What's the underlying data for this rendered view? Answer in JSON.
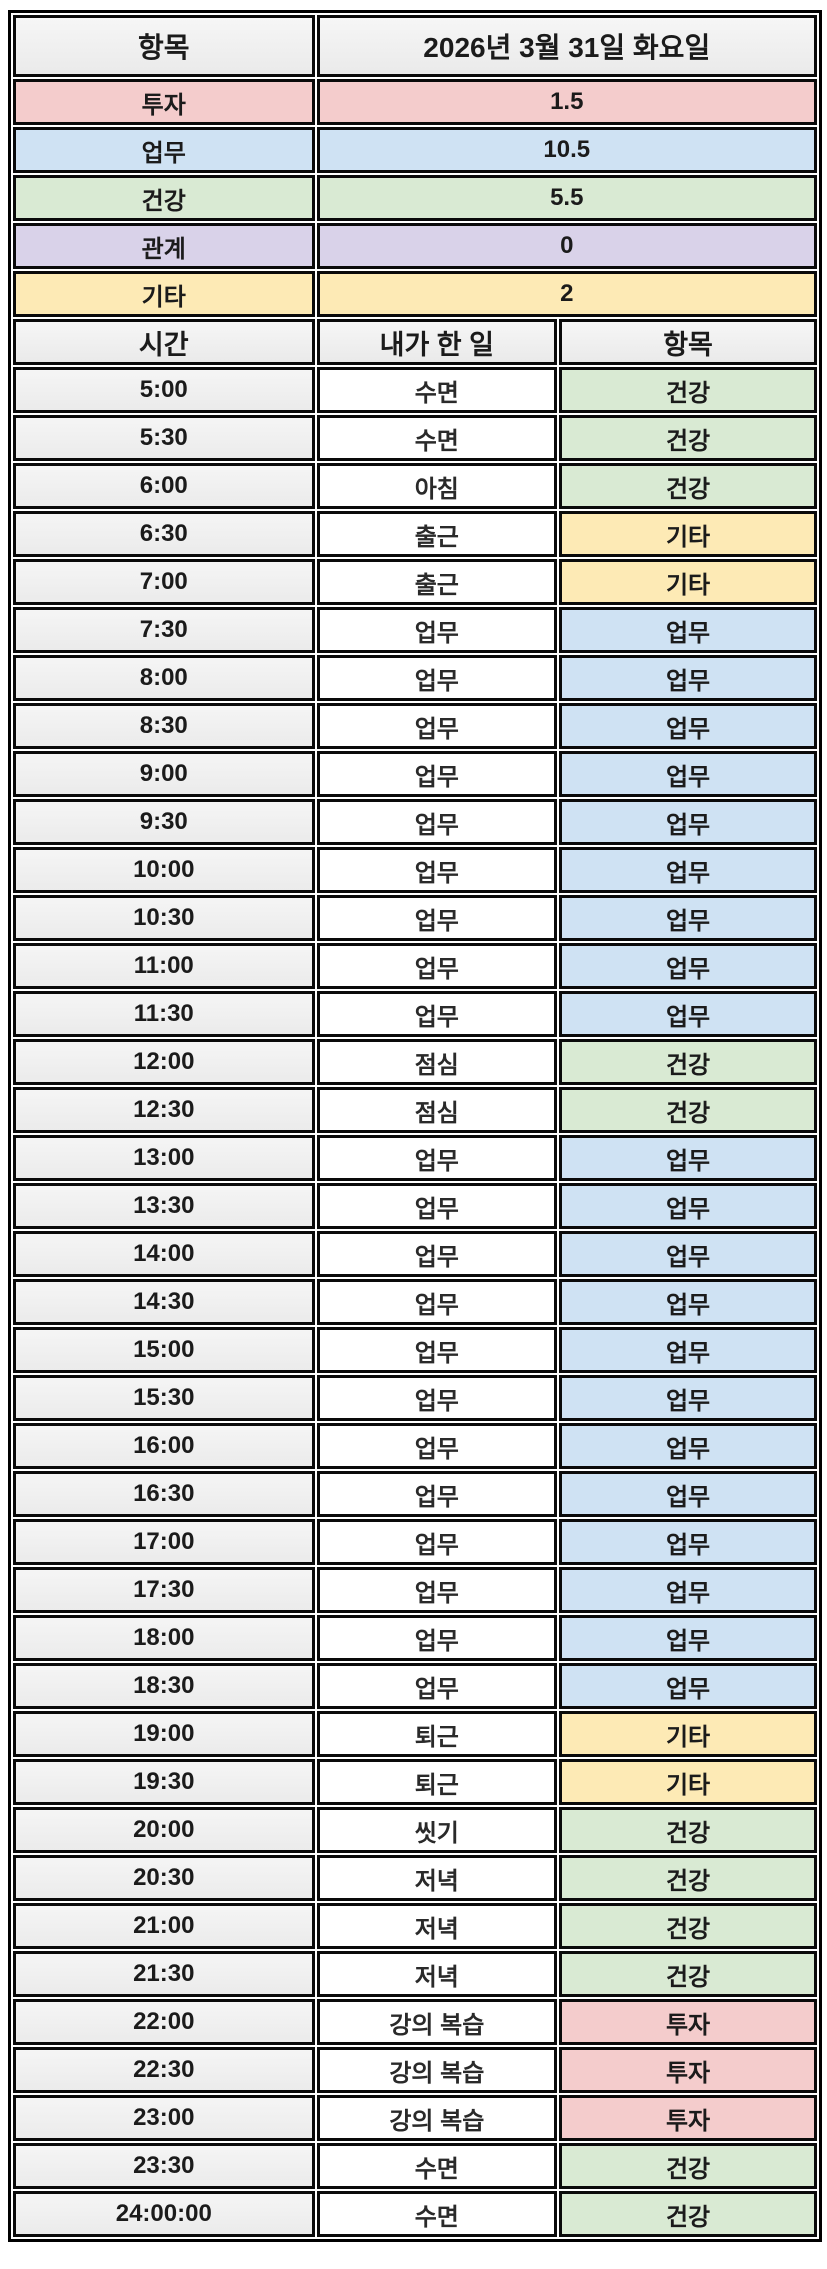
{
  "colors": {
    "border": "#000000",
    "text": "#1b1b1b",
    "header_bg": "#f0f0f0",
    "time_bg": "#f0f0f0",
    "task_bg": "#ffffff",
    "category_colors": {
      "투자": "#f4cccc",
      "업무": "#cfe2f3",
      "건강": "#d9ead3",
      "관계": "#d9d2e9",
      "기타": "#fdeab5"
    }
  },
  "summary": {
    "header": {
      "label": "항목",
      "date": "2026년 3월 31일 화요일"
    },
    "rows": [
      {
        "category": "투자",
        "hours": "1.5"
      },
      {
        "category": "업무",
        "hours": "10.5"
      },
      {
        "category": "건강",
        "hours": "5.5"
      },
      {
        "category": "관계",
        "hours": "0"
      },
      {
        "category": "기타",
        "hours": "2"
      }
    ]
  },
  "timesheet": {
    "headers": {
      "time": "시간",
      "task": "내가 한 일",
      "category": "항목"
    },
    "rows": [
      {
        "time": "5:00",
        "task": "수면",
        "category": "건강"
      },
      {
        "time": "5:30",
        "task": "수면",
        "category": "건강"
      },
      {
        "time": "6:00",
        "task": "아침",
        "category": "건강"
      },
      {
        "time": "6:30",
        "task": "출근",
        "category": "기타"
      },
      {
        "time": "7:00",
        "task": "출근",
        "category": "기타"
      },
      {
        "time": "7:30",
        "task": "업무",
        "category": "업무"
      },
      {
        "time": "8:00",
        "task": "업무",
        "category": "업무"
      },
      {
        "time": "8:30",
        "task": "업무",
        "category": "업무"
      },
      {
        "time": "9:00",
        "task": "업무",
        "category": "업무"
      },
      {
        "time": "9:30",
        "task": "업무",
        "category": "업무"
      },
      {
        "time": "10:00",
        "task": "업무",
        "category": "업무"
      },
      {
        "time": "10:30",
        "task": "업무",
        "category": "업무"
      },
      {
        "time": "11:00",
        "task": "업무",
        "category": "업무"
      },
      {
        "time": "11:30",
        "task": "업무",
        "category": "업무"
      },
      {
        "time": "12:00",
        "task": "점심",
        "category": "건강"
      },
      {
        "time": "12:30",
        "task": "점심",
        "category": "건강"
      },
      {
        "time": "13:00",
        "task": "업무",
        "category": "업무"
      },
      {
        "time": "13:30",
        "task": "업무",
        "category": "업무"
      },
      {
        "time": "14:00",
        "task": "업무",
        "category": "업무"
      },
      {
        "time": "14:30",
        "task": "업무",
        "category": "업무"
      },
      {
        "time": "15:00",
        "task": "업무",
        "category": "업무"
      },
      {
        "time": "15:30",
        "task": "업무",
        "category": "업무"
      },
      {
        "time": "16:00",
        "task": "업무",
        "category": "업무"
      },
      {
        "time": "16:30",
        "task": "업무",
        "category": "업무"
      },
      {
        "time": "17:00",
        "task": "업무",
        "category": "업무"
      },
      {
        "time": "17:30",
        "task": "업무",
        "category": "업무"
      },
      {
        "time": "18:00",
        "task": "업무",
        "category": "업무"
      },
      {
        "time": "18:30",
        "task": "업무",
        "category": "업무"
      },
      {
        "time": "19:00",
        "task": "퇴근",
        "category": "기타"
      },
      {
        "time": "19:30",
        "task": "퇴근",
        "category": "기타"
      },
      {
        "time": "20:00",
        "task": "씻기",
        "category": "건강"
      },
      {
        "time": "20:30",
        "task": "저녁",
        "category": "건강"
      },
      {
        "time": "21:00",
        "task": "저녁",
        "category": "건강"
      },
      {
        "time": "21:30",
        "task": "저녁",
        "category": "건강"
      },
      {
        "time": "22:00",
        "task": "강의 복습",
        "category": "투자"
      },
      {
        "time": "22:30",
        "task": "강의 복습",
        "category": "투자"
      },
      {
        "time": "23:00",
        "task": "강의 복습",
        "category": "투자"
      },
      {
        "time": "23:30",
        "task": "수면",
        "category": "건강"
      },
      {
        "time": "24:00:00",
        "task": "수면",
        "category": "건강"
      }
    ]
  }
}
